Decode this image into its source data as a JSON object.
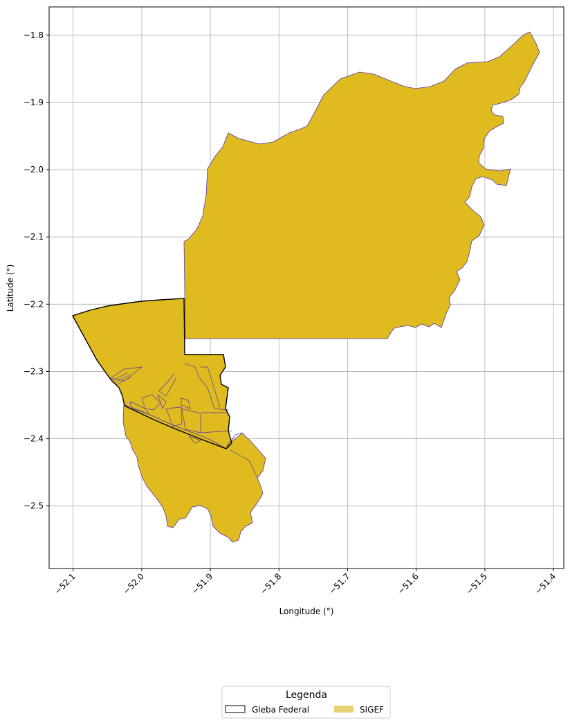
{
  "chart_data": {
    "type": "map",
    "xlabel": "Longitude (°)",
    "ylabel": "Latitude (°)",
    "xlim": [
      -52.135,
      -51.385
    ],
    "ylim": [
      -2.593,
      -1.758
    ],
    "xticks": [
      -52.1,
      -52.0,
      -51.9,
      -51.8,
      -51.7,
      -51.6,
      -51.5,
      -51.4
    ],
    "xtick_labels": [
      "−52.1",
      "−52.0",
      "−51.9",
      "−51.8",
      "−51.7",
      "−51.6",
      "−51.5",
      "−51.4"
    ],
    "yticks": [
      -1.8,
      -1.9,
      -2.0,
      -2.1,
      -2.2,
      -2.3,
      -2.4,
      -2.5
    ],
    "ytick_labels": [
      "−1.8",
      "−1.9",
      "−2.0",
      "−2.1",
      "−2.2",
      "−2.3",
      "−2.4",
      "−2.5"
    ],
    "grid": true,
    "legend": {
      "title": "Legenda",
      "placement": "bottom-center",
      "entries": [
        {
          "label": "Gleba Federal",
          "style": "outline",
          "color": "#000000"
        },
        {
          "label": "SIGEF",
          "style": "fill",
          "color": "#e8d074"
        }
      ]
    },
    "colors": {
      "sigef_fill": "#dfbb1f",
      "sigef_edge": "#5533aa",
      "gleba_edge": "#000000",
      "grid": "#b0b0b0"
    }
  }
}
